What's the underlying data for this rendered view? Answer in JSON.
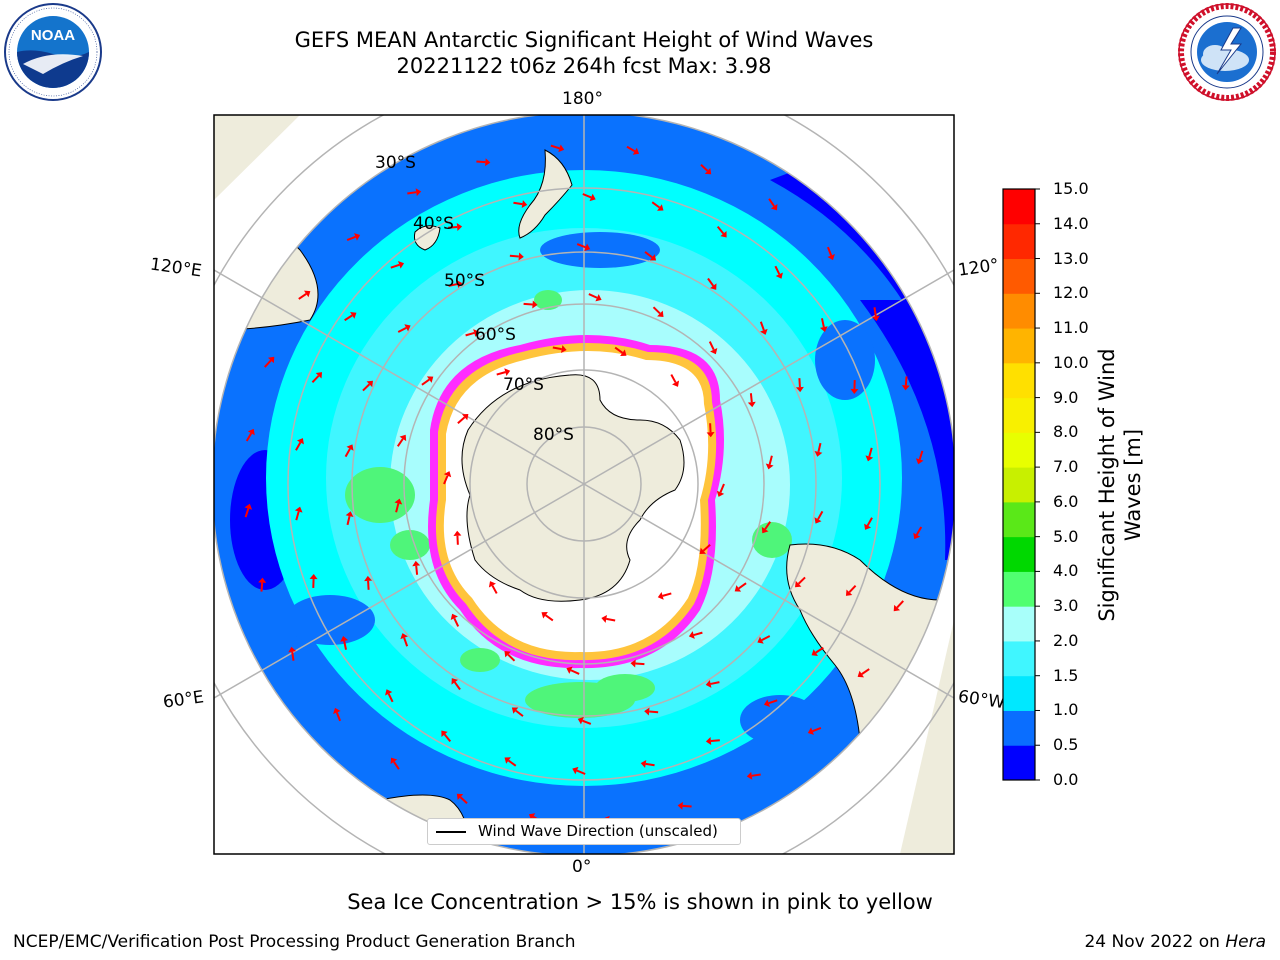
{
  "title": {
    "line1": "GEFS MEAN Antarctic Significant Height of Wind Waves",
    "line2": "20221122 t06z 264h fcst   Max: 3.98"
  },
  "logos": {
    "left": {
      "text": "NOAA",
      "ring_text": "NATIONAL OCEANIC AND ATMOSPHERIC ADMINISTRATION • U.S. DEPARTMENT OF COMMERCE"
    },
    "right": {
      "ring_text": "NATIONAL WEATHER SERVICE"
    }
  },
  "map": {
    "longitude_labels": {
      "top": "180°",
      "bottom": "0°",
      "upper_left": "120°E",
      "lower_left": "60°E",
      "upper_right": "120°",
      "lower_right": "60°W"
    },
    "latitude_labels": [
      "30°S",
      "40°S",
      "50°S",
      "60°S",
      "70°S",
      "80°S"
    ],
    "legend": "Wind Wave Direction (unscaled)",
    "colors": {
      "land": "#eeecdc",
      "deep_blue": "#0000fe",
      "blue": "#0a72fe",
      "cyan": "#00ffff",
      "light_cyan": "#a8fdfd",
      "green": "#4ff57a",
      "ice": "#ffffff",
      "ice_edge_pink": "#ff2cff",
      "ice_edge_yellow": "#ffc43c",
      "arrow": "#ff0000"
    }
  },
  "colorbar": {
    "label": "Significant Height of Wind Waves [m]",
    "ticks": [
      "0.0",
      "0.5",
      "1.0",
      "1.5",
      "2.0",
      "3.0",
      "4.0",
      "5.0",
      "6.0",
      "7.0",
      "8.0",
      "9.0",
      "10.0",
      "11.0",
      "12.0",
      "13.0",
      "14.0",
      "15.0"
    ],
    "colors": [
      "#0000ff",
      "#0a6eff",
      "#00e8ff",
      "#40f6ff",
      "#a8fffa",
      "#50ff70",
      "#00d800",
      "#5ae818",
      "#c8f000",
      "#e8ff00",
      "#f8f000",
      "#ffe000",
      "#ffb400",
      "#ff8c00",
      "#ff5a00",
      "#ff2800",
      "#ff0000"
    ]
  },
  "note": "Sea Ice Concentration > 15% is shown in pink to yellow",
  "credits": {
    "left": "NCEP/EMC/Verification Post Processing Product Generation Branch",
    "right_date": "24 Nov 2022 on",
    "right_machine": "Hera"
  }
}
